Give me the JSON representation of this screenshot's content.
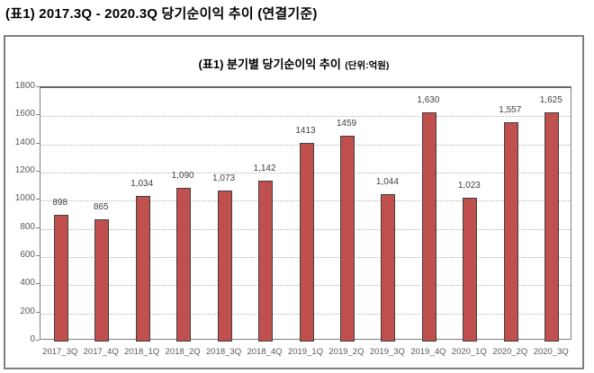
{
  "page": {
    "title": "(표1) 2017.3Q - 2020.3Q 당기순이익 추이 (연결기준)"
  },
  "chart": {
    "title": "(표1) 분기별 당기순이익 추이",
    "unit": "(단위:억원)"
  },
  "chart_data": {
    "type": "bar",
    "title": "(표1) 분기별 당기순이익 추이 (단위:억원)",
    "categories": [
      "2017_3Q",
      "2017_4Q",
      "2018_1Q",
      "2018_2Q",
      "2018_3Q",
      "2018_4Q",
      "2019_1Q",
      "2019_2Q",
      "2019_3Q",
      "2019_4Q",
      "2020_1Q",
      "2020_2Q",
      "2020_3Q"
    ],
    "values": [
      898,
      865,
      1034,
      1090,
      1073,
      1142,
      1413,
      1459,
      1044,
      1630,
      1023,
      1557,
      1625
    ],
    "value_labels": [
      "898",
      "865",
      "1,034",
      "1,090",
      "1,073",
      "1,142",
      "1413",
      "1459",
      "1,044",
      "1,630",
      "1,023",
      "1,557",
      "1,625"
    ],
    "xlabel": "",
    "ylabel": "",
    "ylim": [
      0,
      1800
    ],
    "ytick_step": 200,
    "yticks": [
      0,
      200,
      400,
      600,
      800,
      1000,
      1200,
      1400,
      1600,
      1800
    ],
    "grid": true,
    "gridline_style": "dotted",
    "legend_position": "none",
    "bar_color": "#c0504d",
    "bar_border_color": "#404040",
    "axis_label_color": "#595959",
    "data_label_color": "#404040"
  }
}
